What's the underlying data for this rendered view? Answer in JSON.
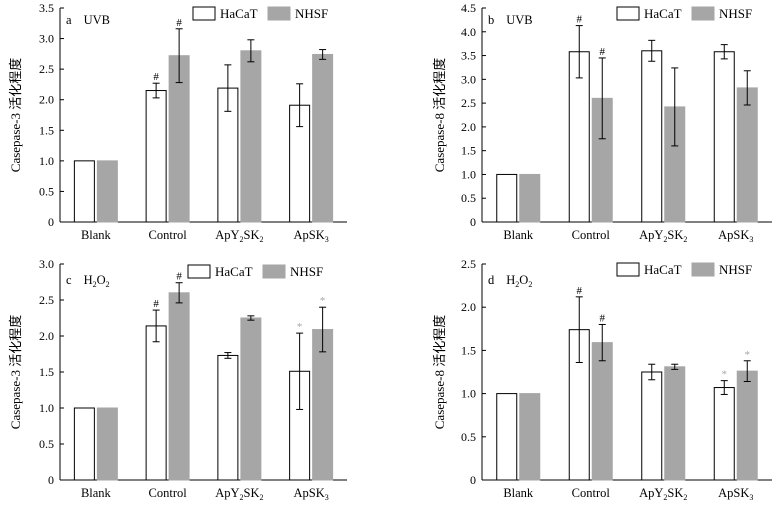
{
  "legend": {
    "items": [
      {
        "name": "HaCaT",
        "color": "#ffffff"
      },
      {
        "name": "NHSF",
        "color": "#a6a6a6"
      }
    ]
  },
  "colors": {
    "hacat_fill": "#ffffff",
    "nhsf_fill": "#a6a6a6",
    "axis": "#000000",
    "gray_mark": "#a6a6a6"
  },
  "chart_data": [
    {
      "type": "bar",
      "panel_label": "a",
      "panel_condition": "UVB",
      "panel_condition_sub": "",
      "ylabel": "Casepase-3 活化程度",
      "categories": [
        {
          "label": "Blank",
          "sub": "",
          "tail": ""
        },
        {
          "label": "Control",
          "sub": "",
          "tail": ""
        },
        {
          "label": "ApY",
          "sub": "2",
          "tail": "SK",
          "sub2": "2"
        },
        {
          "label": "ApSK",
          "sub": "3",
          "tail": ""
        }
      ],
      "ylim": [
        0,
        3.5
      ],
      "yticks": [
        "0",
        "0.5",
        "1.0",
        "1.5",
        "2.0",
        "2.5",
        "3.0",
        "3.5"
      ],
      "series": [
        {
          "name": "HaCaT",
          "values": [
            1.0,
            2.15,
            2.19,
            1.91
          ],
          "errors": [
            0,
            0.12,
            0.38,
            0.35
          ],
          "marks": [
            "",
            "#",
            "",
            ""
          ]
        },
        {
          "name": "NHSF",
          "values": [
            1.0,
            2.72,
            2.8,
            2.74
          ],
          "errors": [
            0,
            0.44,
            0.18,
            0.08
          ],
          "marks": [
            "",
            "#",
            "",
            ""
          ]
        }
      ]
    },
    {
      "type": "bar",
      "panel_label": "b",
      "panel_condition": "UVB",
      "panel_condition_sub": "",
      "ylabel": "Casepase-8 活化程度",
      "categories": [
        {
          "label": "Blank",
          "sub": "",
          "tail": ""
        },
        {
          "label": "Control",
          "sub": "",
          "tail": ""
        },
        {
          "label": "ApY",
          "sub": "2",
          "tail": "SK",
          "sub2": "2"
        },
        {
          "label": "ApSK",
          "sub": "3",
          "tail": ""
        }
      ],
      "ylim": [
        0,
        4.5
      ],
      "yticks": [
        "0",
        "0.5",
        "1.0",
        "1.5",
        "2.0",
        "2.5",
        "3.0",
        "3.5",
        "4.0",
        "4.5"
      ],
      "series": [
        {
          "name": "HaCaT",
          "values": [
            1.0,
            3.58,
            3.6,
            3.58
          ],
          "errors": [
            0,
            0.55,
            0.22,
            0.15
          ],
          "marks": [
            "",
            "#",
            "",
            ""
          ]
        },
        {
          "name": "NHSF",
          "values": [
            1.0,
            2.6,
            2.42,
            2.82
          ],
          "errors": [
            0,
            0.85,
            0.82,
            0.36
          ],
          "marks": [
            "",
            "#",
            "",
            ""
          ]
        }
      ]
    },
    {
      "type": "bar",
      "panel_label": "c",
      "panel_condition": "H",
      "panel_condition_sub": "2",
      "panel_condition_tail": "O",
      "panel_condition_sub2": "2",
      "ylabel": "Casepase-3 活化程度",
      "categories": [
        {
          "label": "Blank",
          "sub": "",
          "tail": ""
        },
        {
          "label": "Control",
          "sub": "",
          "tail": ""
        },
        {
          "label": "ApY",
          "sub": "2",
          "tail": "SK",
          "sub2": "2"
        },
        {
          "label": "ApSK",
          "sub": "3",
          "tail": ""
        }
      ],
      "ylim": [
        0,
        3.0
      ],
      "yticks": [
        "0",
        "0.5",
        "1.0",
        "1.5",
        "2.0",
        "2.5",
        "3.0"
      ],
      "series": [
        {
          "name": "HaCaT",
          "values": [
            1.0,
            2.14,
            1.73,
            1.51
          ],
          "errors": [
            0,
            0.22,
            0.04,
            0.53
          ],
          "marks": [
            "",
            "#",
            "",
            "*"
          ]
        },
        {
          "name": "NHSF",
          "values": [
            1.0,
            2.6,
            2.25,
            2.09
          ],
          "errors": [
            0,
            0.14,
            0.03,
            0.31
          ],
          "marks": [
            "",
            "#",
            "",
            "*"
          ]
        }
      ]
    },
    {
      "type": "bar",
      "panel_label": "d",
      "panel_condition": "H",
      "panel_condition_sub": "2",
      "panel_condition_tail": "O",
      "panel_condition_sub2": "2",
      "ylabel": "Casepase-8 活化程度",
      "categories": [
        {
          "label": "Blank",
          "sub": "",
          "tail": ""
        },
        {
          "label": "Control",
          "sub": "",
          "tail": ""
        },
        {
          "label": "ApY",
          "sub": "2",
          "tail": "SK",
          "sub2": "2"
        },
        {
          "label": "ApSK",
          "sub": "3",
          "tail": ""
        }
      ],
      "ylim": [
        0,
        2.5
      ],
      "yticks": [
        "0",
        "0.5",
        "1.0",
        "1.5",
        "2.0",
        "2.5"
      ],
      "series": [
        {
          "name": "HaCaT",
          "values": [
            1.0,
            1.74,
            1.25,
            1.07
          ],
          "errors": [
            0,
            0.38,
            0.09,
            0.08
          ],
          "marks": [
            "",
            "#",
            "",
            "*"
          ]
        },
        {
          "name": "NHSF",
          "values": [
            1.0,
            1.59,
            1.31,
            1.26
          ],
          "errors": [
            0,
            0.21,
            0.03,
            0.12
          ],
          "marks": [
            "",
            "#",
            "",
            "*"
          ]
        }
      ]
    }
  ]
}
